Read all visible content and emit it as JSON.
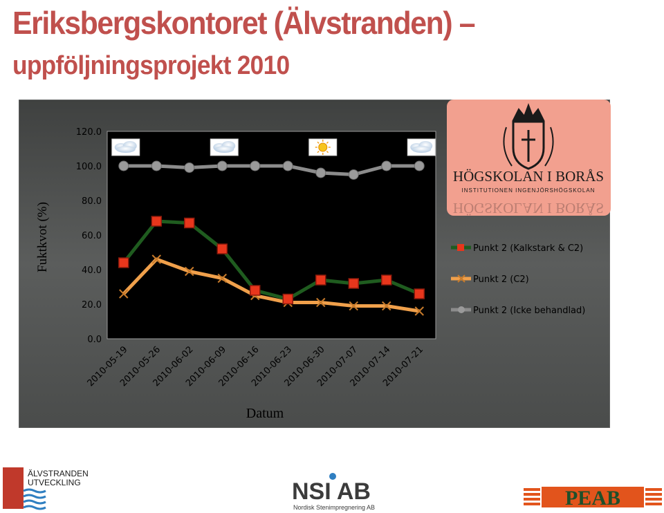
{
  "header": {
    "title_line1": "Eriksbergskontoret (Älvstranden) –",
    "title_line2": "uppföljningsprojekt 2010"
  },
  "colors": {
    "title": "#c0504d",
    "panel_bg": "#595b5a",
    "plot_bg": "#000000",
    "series_green": "#1f5c1f",
    "series_orange": "#f0a04b",
    "series_gray": "#8c8c8c",
    "marker_red": "#e8361c",
    "hb_bg": "#f2a08f"
  },
  "chart_data": {
    "type": "line",
    "ylabel": "Fuktkvot (%)",
    "xlabel": "Datum",
    "ylim": [
      0,
      120
    ],
    "yticks": [
      "0.0",
      "20.0",
      "40.0",
      "60.0",
      "80.0",
      "100.0",
      "120.0"
    ],
    "grid": false,
    "legend_position": "right",
    "categories": [
      "2010-05-19",
      "2010-05-26",
      "2010-06-02",
      "2010-06-09",
      "2010-06-16",
      "2010-06-23",
      "2010-06-30",
      "2010-07-07",
      "2010-07-14",
      "2010-07-21"
    ],
    "series": [
      {
        "name": "Punkt 2 (Kalkstark & C2)",
        "color": "#1f5c1f",
        "marker": "red-square",
        "values": [
          44,
          68,
          67,
          52,
          28,
          23,
          34,
          32,
          34,
          26
        ]
      },
      {
        "name": "Punkt 2 (C2)",
        "color": "#f0a04b",
        "marker": "x",
        "values": [
          26,
          46,
          39,
          35,
          25,
          21,
          21,
          19,
          19,
          16
        ]
      },
      {
        "name": "Punkt 2 (Icke behandlad)",
        "color": "#8c8c8c",
        "marker": "gray-circle",
        "values": [
          100,
          100,
          99,
          100,
          100,
          100,
          96,
          95,
          100,
          100
        ]
      }
    ],
    "weather_icons": [
      {
        "category": "2010-05-19",
        "icon": "cloud-rain-icon"
      },
      {
        "category": "2010-06-09",
        "icon": "cloud-rain-icon"
      },
      {
        "category": "2010-06-30",
        "icon": "sun-icon"
      },
      {
        "category": "2010-07-21",
        "icon": "cloud-rain-icon"
      }
    ]
  },
  "logos": {
    "hb": {
      "name": "HÖGSKOLAN I BORÅS",
      "subtitle": "INSTITUTIONEN INGENJÖRSHÖGSKOLAN"
    },
    "alvstranden": {
      "line1": "ÄLVSTRANDEN",
      "line2": "UTVECKLING"
    },
    "nsi": {
      "text": "NSI AB",
      "subtitle": "Nordisk Stenimpregnering AB"
    },
    "peab": {
      "text": "PEAB"
    }
  }
}
